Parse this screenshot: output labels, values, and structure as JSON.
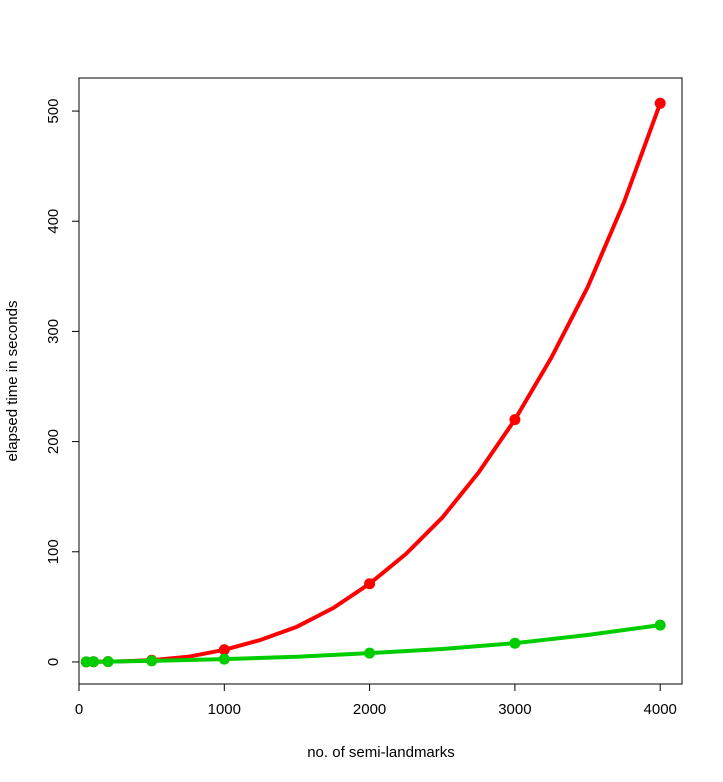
{
  "chart_data": {
    "type": "line",
    "title": "",
    "xlabel": "no. of semi-landmarks",
    "ylabel": "elapsed time in seconds",
    "xlim": [
      0,
      4150
    ],
    "ylim": [
      -20,
      530
    ],
    "xticks": [
      0,
      1000,
      2000,
      3000,
      4000
    ],
    "yticks": [
      0,
      100,
      200,
      300,
      400,
      500
    ],
    "grid": false,
    "series": [
      {
        "color": "#ff0000",
        "points": [
          [
            50,
            0.1
          ],
          [
            100,
            0.2
          ],
          [
            200,
            0.3
          ],
          [
            500,
            1.5
          ],
          [
            1000,
            11
          ],
          [
            2000,
            71
          ],
          [
            3000,
            220
          ],
          [
            4000,
            507
          ]
        ],
        "curve": [
          [
            50,
            0.1
          ],
          [
            250,
            0.4
          ],
          [
            500,
            1.5
          ],
          [
            750,
            4.7
          ],
          [
            1000,
            11
          ],
          [
            1250,
            20
          ],
          [
            1500,
            32
          ],
          [
            1750,
            49
          ],
          [
            2000,
            71
          ],
          [
            2250,
            98
          ],
          [
            2500,
            131
          ],
          [
            2750,
            172
          ],
          [
            3000,
            220
          ],
          [
            3250,
            276
          ],
          [
            3500,
            340
          ],
          [
            3750,
            417
          ],
          [
            4000,
            507
          ]
        ]
      },
      {
        "color": "#00cd00",
        "points": [
          [
            50,
            0.1
          ],
          [
            100,
            0.2
          ],
          [
            200,
            0.3
          ],
          [
            500,
            1
          ],
          [
            1000,
            2.6
          ],
          [
            2000,
            8
          ],
          [
            3000,
            17
          ],
          [
            4000,
            33.5
          ]
        ],
        "curve": [
          [
            50,
            0.1
          ],
          [
            250,
            0.4
          ],
          [
            500,
            1
          ],
          [
            750,
            1.8
          ],
          [
            1000,
            2.6
          ],
          [
            1500,
            4.8
          ],
          [
            2000,
            8
          ],
          [
            2500,
            11.8
          ],
          [
            3000,
            17
          ],
          [
            3500,
            24.5
          ],
          [
            4000,
            33.5
          ]
        ]
      }
    ]
  }
}
